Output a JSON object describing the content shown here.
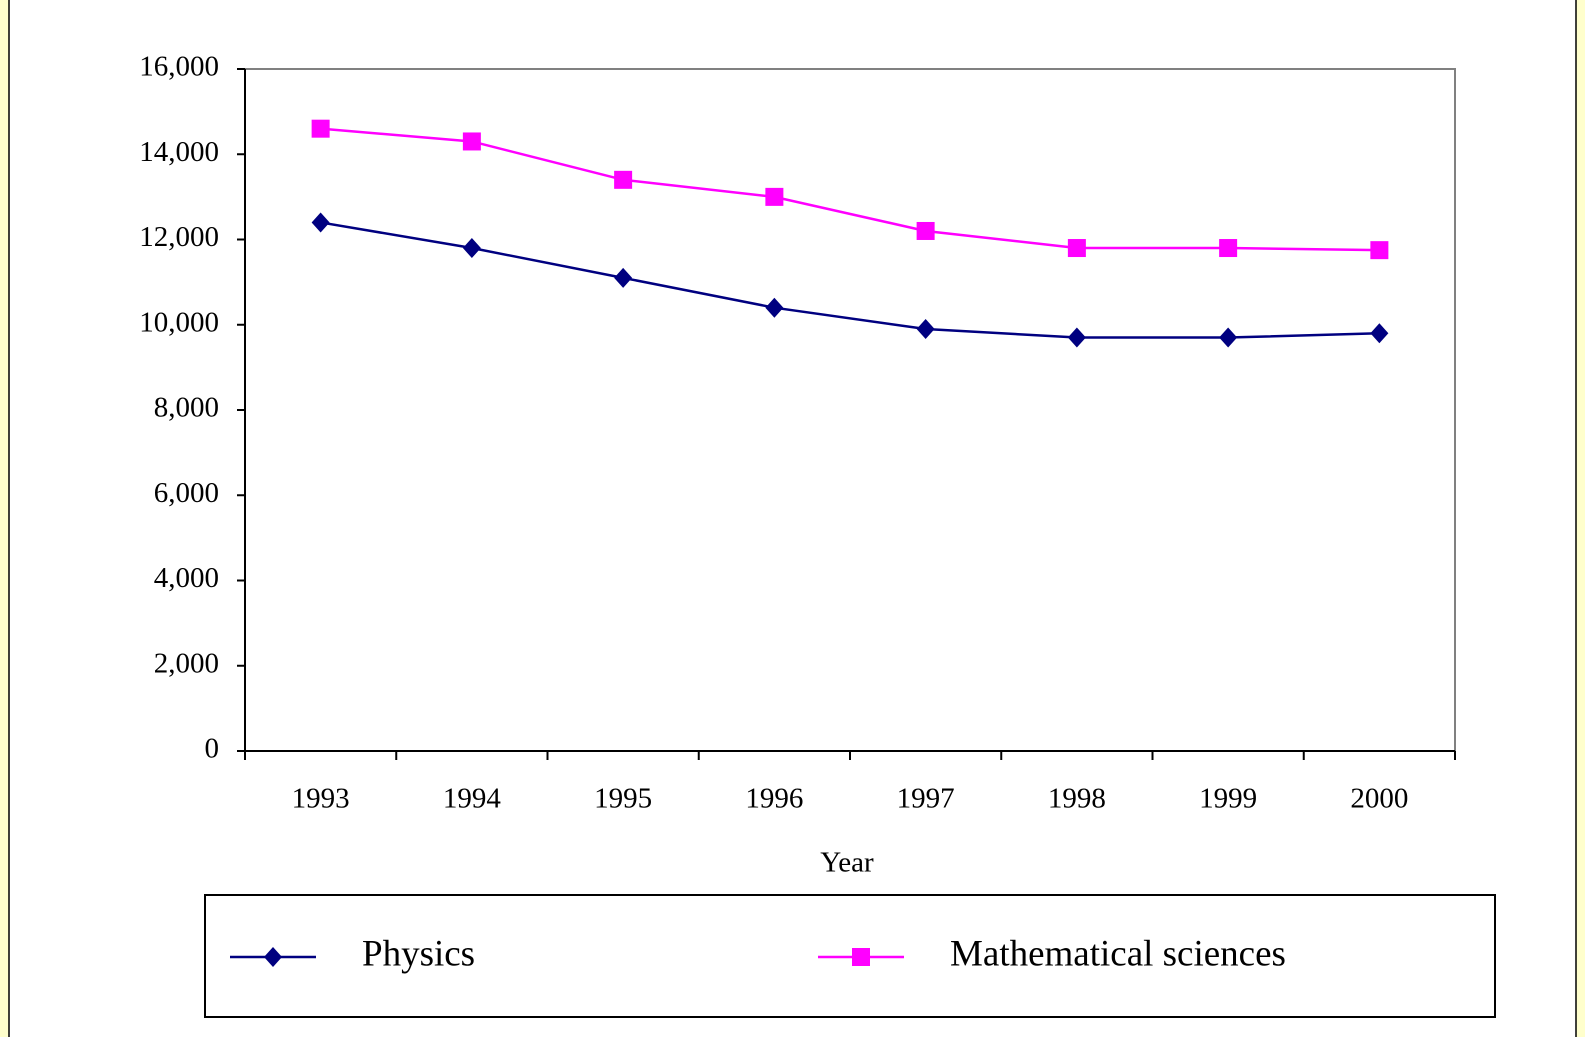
{
  "chart_data": {
    "type": "line",
    "categories": [
      "1993",
      "1994",
      "1995",
      "1996",
      "1997",
      "1998",
      "1999",
      "2000"
    ],
    "series": [
      {
        "name": "Physics",
        "color": "#000080",
        "marker": "diamond",
        "values": [
          12400,
          11800,
          11100,
          10400,
          9900,
          9700,
          9700,
          9800
        ]
      },
      {
        "name": "Mathematical sciences",
        "color": "#ff00ff",
        "marker": "square",
        "values": [
          14600,
          14300,
          13400,
          13000,
          12200,
          11800,
          11800,
          11750
        ]
      }
    ],
    "x_label": "Year",
    "ylim": [
      0,
      16000
    ],
    "yticks": [
      0,
      {
        "value": 2000,
        "label": "2,000"
      },
      {
        "value": 4000,
        "label": "4,000"
      },
      {
        "value": 6000,
        "label": "6,000"
      },
      {
        "value": 8000,
        "label": "8,000"
      },
      {
        "value": 10000,
        "label": "10,000"
      },
      {
        "value": 12000,
        "label": "12,000"
      },
      {
        "value": 14000,
        "label": "14,000"
      },
      {
        "value": 16000,
        "label": "16,000"
      }
    ],
    "grid": false,
    "legend": "bottom"
  }
}
